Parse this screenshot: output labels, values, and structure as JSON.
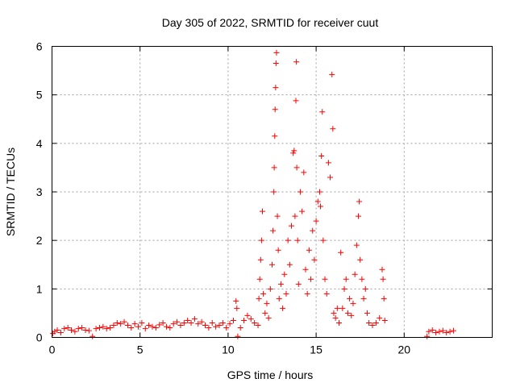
{
  "chart_data": {
    "type": "scatter",
    "title": "Day 305 of 2022, SRMTID for receiver cuut",
    "xlabel": "GPS time / hours",
    "ylabel": "SRMTID / TECUs",
    "xlim": [
      0,
      25
    ],
    "ylim": [
      0,
      6
    ],
    "xticks": [
      0,
      5,
      10,
      15,
      20
    ],
    "yticks": [
      0,
      1,
      2,
      3,
      4,
      5,
      6
    ],
    "xtick_labels": [
      "0",
      "5",
      "10",
      "15",
      "20"
    ],
    "ytick_labels": [
      "0",
      "1",
      "2",
      "3",
      "4",
      "5",
      "6"
    ],
    "grid": true,
    "marker": "+",
    "series": [
      {
        "name": "SRMTID",
        "color": "#ff0000",
        "points": [
          [
            0.05,
            0.08
          ],
          [
            0.15,
            0.12
          ],
          [
            0.3,
            0.15
          ],
          [
            0.5,
            0.1
          ],
          [
            0.7,
            0.18
          ],
          [
            0.9,
            0.2
          ],
          [
            1.1,
            0.15
          ],
          [
            1.3,
            0.12
          ],
          [
            1.5,
            0.18
          ],
          [
            1.7,
            0.2
          ],
          [
            1.9,
            0.15
          ],
          [
            2.1,
            0.14
          ],
          [
            2.3,
            0.02
          ],
          [
            2.5,
            0.18
          ],
          [
            2.7,
            0.2
          ],
          [
            2.9,
            0.22
          ],
          [
            3.1,
            0.18
          ],
          [
            3.3,
            0.2
          ],
          [
            3.5,
            0.25
          ],
          [
            3.7,
            0.3
          ],
          [
            3.9,
            0.28
          ],
          [
            4.1,
            0.32
          ],
          [
            4.3,
            0.25
          ],
          [
            4.5,
            0.2
          ],
          [
            4.7,
            0.28
          ],
          [
            4.9,
            0.22
          ],
          [
            5.1,
            0.3
          ],
          [
            5.3,
            0.18
          ],
          [
            5.5,
            0.25
          ],
          [
            5.7,
            0.22
          ],
          [
            5.9,
            0.2
          ],
          [
            6.1,
            0.26
          ],
          [
            6.3,
            0.3
          ],
          [
            6.5,
            0.22
          ],
          [
            6.7,
            0.2
          ],
          [
            6.9,
            0.28
          ],
          [
            7.1,
            0.32
          ],
          [
            7.3,
            0.25
          ],
          [
            7.5,
            0.3
          ],
          [
            7.7,
            0.35
          ],
          [
            7.9,
            0.3
          ],
          [
            8.1,
            0.38
          ],
          [
            8.3,
            0.28
          ],
          [
            8.5,
            0.32
          ],
          [
            8.7,
            0.25
          ],
          [
            8.9,
            0.2
          ],
          [
            9.1,
            0.3
          ],
          [
            9.3,
            0.22
          ],
          [
            9.5,
            0.25
          ],
          [
            9.7,
            0.3
          ],
          [
            9.9,
            0.2
          ],
          [
            10.1,
            0.28
          ],
          [
            10.3,
            0.35
          ],
          [
            10.45,
            0.75
          ],
          [
            10.5,
            0.6
          ],
          [
            10.55,
            0.02
          ],
          [
            10.7,
            0.2
          ],
          [
            10.9,
            0.35
          ],
          [
            11.1,
            0.45
          ],
          [
            11.3,
            0.38
          ],
          [
            11.5,
            0.3
          ],
          [
            11.7,
            0.25
          ],
          [
            11.75,
            0.8
          ],
          [
            11.8,
            1.2
          ],
          [
            11.85,
            1.6
          ],
          [
            11.9,
            2.0
          ],
          [
            11.95,
            2.6
          ],
          [
            12.0,
            0.9
          ],
          [
            12.1,
            0.5
          ],
          [
            12.2,
            0.7
          ],
          [
            12.3,
            0.4
          ],
          [
            12.4,
            1.0
          ],
          [
            12.5,
            1.5
          ],
          [
            12.55,
            2.2
          ],
          [
            12.6,
            3.0
          ],
          [
            12.62,
            3.5
          ],
          [
            12.65,
            4.15
          ],
          [
            12.67,
            4.7
          ],
          [
            12.7,
            5.15
          ],
          [
            12.72,
            5.65
          ],
          [
            12.75,
            5.87
          ],
          [
            12.8,
            2.5
          ],
          [
            12.85,
            1.8
          ],
          [
            12.9,
            0.8
          ],
          [
            13.0,
            1.1
          ],
          [
            13.1,
            0.6
          ],
          [
            13.2,
            1.3
          ],
          [
            13.3,
            0.9
          ],
          [
            13.4,
            2.0
          ],
          [
            13.5,
            1.5
          ],
          [
            13.6,
            2.3
          ],
          [
            13.7,
            3.8
          ],
          [
            13.75,
            3.85
          ],
          [
            13.8,
            2.5
          ],
          [
            13.85,
            4.88
          ],
          [
            13.88,
            5.68
          ],
          [
            13.9,
            3.5
          ],
          [
            13.95,
            2.0
          ],
          [
            14.0,
            1.1
          ],
          [
            14.1,
            3.0
          ],
          [
            14.2,
            2.6
          ],
          [
            14.3,
            3.4
          ],
          [
            14.4,
            1.4
          ],
          [
            14.5,
            0.9
          ],
          [
            14.6,
            1.8
          ],
          [
            14.7,
            1.2
          ],
          [
            14.8,
            2.2
          ],
          [
            14.9,
            1.6
          ],
          [
            15.0,
            2.4
          ],
          [
            15.1,
            2.8
          ],
          [
            15.2,
            3.0
          ],
          [
            15.25,
            2.7
          ],
          [
            15.3,
            3.74
          ],
          [
            15.35,
            4.65
          ],
          [
            15.4,
            2.0
          ],
          [
            15.5,
            1.2
          ],
          [
            15.6,
            0.9
          ],
          [
            15.7,
            3.6
          ],
          [
            15.8,
            3.3
          ],
          [
            15.9,
            5.42
          ],
          [
            15.95,
            4.3
          ],
          [
            16.0,
            0.5
          ],
          [
            16.1,
            0.4
          ],
          [
            16.2,
            0.6
          ],
          [
            16.3,
            0.3
          ],
          [
            16.4,
            1.75
          ],
          [
            16.5,
            0.6
          ],
          [
            16.6,
            1.0
          ],
          [
            16.7,
            1.2
          ],
          [
            16.8,
            0.5
          ],
          [
            16.9,
            0.8
          ],
          [
            17.0,
            0.45
          ],
          [
            17.1,
            0.7
          ],
          [
            17.2,
            1.3
          ],
          [
            17.3,
            1.9
          ],
          [
            17.4,
            2.5
          ],
          [
            17.45,
            2.8
          ],
          [
            17.5,
            1.6
          ],
          [
            17.6,
            1.2
          ],
          [
            17.7,
            0.8
          ],
          [
            17.8,
            1.0
          ],
          [
            17.9,
            0.5
          ],
          [
            18.0,
            0.3
          ],
          [
            18.2,
            0.25
          ],
          [
            18.4,
            0.3
          ],
          [
            18.6,
            0.4
          ],
          [
            18.75,
            1.4
          ],
          [
            18.8,
            1.2
          ],
          [
            18.85,
            0.8
          ],
          [
            18.9,
            0.35
          ],
          [
            21.3,
            0.02
          ],
          [
            21.4,
            0.12
          ],
          [
            21.6,
            0.15
          ],
          [
            21.8,
            0.1
          ],
          [
            22.0,
            0.12
          ],
          [
            22.2,
            0.14
          ],
          [
            22.4,
            0.1
          ],
          [
            22.6,
            0.12
          ],
          [
            22.8,
            0.14
          ]
        ]
      }
    ]
  }
}
